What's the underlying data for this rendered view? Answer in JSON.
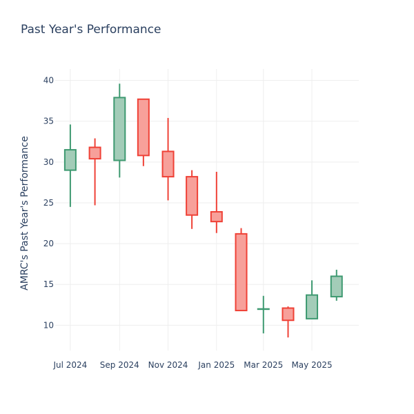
{
  "chart_data": {
    "type": "candlestick",
    "title": "Past Year's Performance",
    "xlabel": "",
    "ylabel": "AMRC's Past Year's Performance",
    "ylim": [
      6.9,
      41.4
    ],
    "xlim": [
      "2024-06-12",
      "2025-06-29"
    ],
    "yticks": [
      10,
      15,
      20,
      25,
      30,
      35,
      40
    ],
    "xticks": [
      {
        "date": "2024-07-01",
        "label": "Jul 2024"
      },
      {
        "date": "2024-09-01",
        "label": "Sep 2024"
      },
      {
        "date": "2024-11-01",
        "label": "Nov 2024"
      },
      {
        "date": "2025-01-01",
        "label": "Jan 2025"
      },
      {
        "date": "2025-03-01",
        "label": "Mar 2025"
      },
      {
        "date": "2025-05-01",
        "label": "May 2025"
      }
    ],
    "grid": true,
    "colors": {
      "increasing_line": "#3d9970",
      "increasing_fill": "#a3ccb8",
      "decreasing_line": "#ef4136",
      "decreasing_fill": "#f7a09a",
      "grid": "#eeeeee",
      "text": "#2a3f5f"
    },
    "candles": [
      {
        "date": "2024-07-01",
        "open": 29.0,
        "high": 34.6,
        "low": 24.5,
        "close": 31.5
      },
      {
        "date": "2024-08-01",
        "open": 31.8,
        "high": 32.9,
        "low": 24.7,
        "close": 30.4
      },
      {
        "date": "2024-09-01",
        "open": 30.2,
        "high": 39.6,
        "low": 28.1,
        "close": 37.9
      },
      {
        "date": "2024-10-01",
        "open": 37.7,
        "high": 37.7,
        "low": 29.5,
        "close": 30.8
      },
      {
        "date": "2024-11-01",
        "open": 31.3,
        "high": 35.4,
        "low": 25.3,
        "close": 28.2
      },
      {
        "date": "2024-12-01",
        "open": 28.2,
        "high": 29.0,
        "low": 21.8,
        "close": 23.5
      },
      {
        "date": "2025-01-01",
        "open": 23.9,
        "high": 28.8,
        "low": 21.3,
        "close": 22.7
      },
      {
        "date": "2025-02-01",
        "open": 21.2,
        "high": 21.9,
        "low": 11.8,
        "close": 11.8
      },
      {
        "date": "2025-03-01",
        "open": 12.0,
        "high": 13.6,
        "low": 9.0,
        "close": 12.0
      },
      {
        "date": "2025-04-01",
        "open": 12.1,
        "high": 12.3,
        "low": 8.5,
        "close": 10.6
      },
      {
        "date": "2025-05-01",
        "open": 10.8,
        "high": 15.5,
        "low": 10.8,
        "close": 13.7
      },
      {
        "date": "2025-06-01",
        "open": 13.5,
        "high": 16.8,
        "low": 13.0,
        "close": 16.0
      }
    ]
  }
}
